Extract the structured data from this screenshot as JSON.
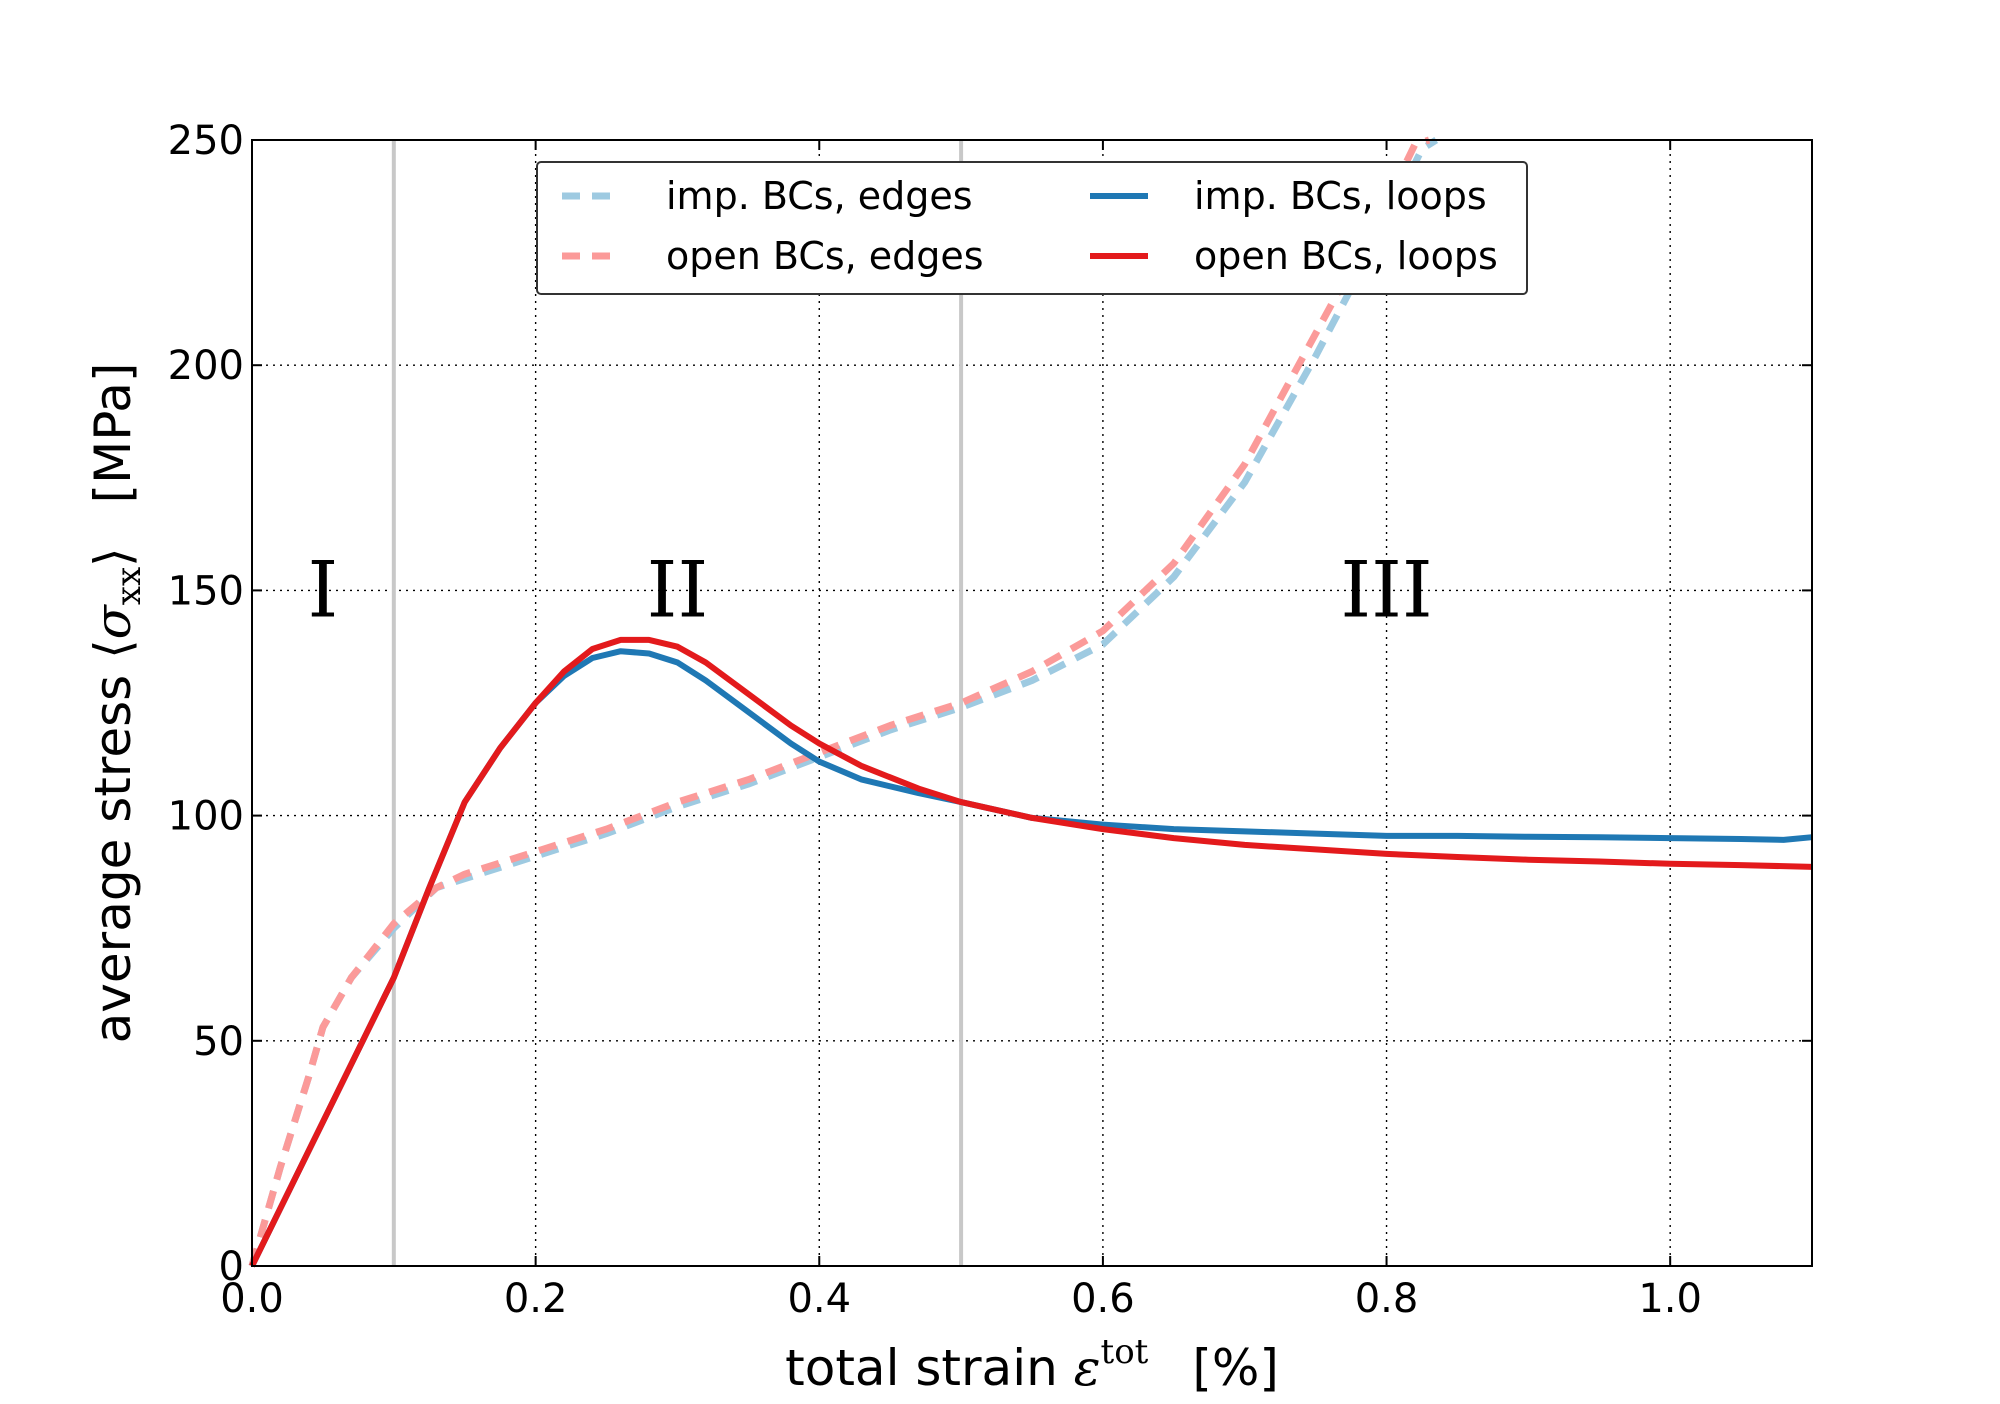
{
  "chart_data": {
    "type": "line",
    "xlabel": "total strain ε^tot   [%]",
    "xlabel_text": "total strain ",
    "xlabel_symbol": "ε",
    "xlabel_sup": "tot",
    "xlabel_unit": "[%]",
    "ylabel": "average stress ⟨σxx⟩   [MPa]",
    "ylabel_text": "average stress ",
    "ylabel_open": "⟨",
    "ylabel_symbol": "σ",
    "ylabel_sub": "xx",
    "ylabel_close": "⟩",
    "ylabel_unit": "[MPa]",
    "xlim": [
      0.0,
      1.1
    ],
    "ylim": [
      0,
      250
    ],
    "xticks": [
      0.0,
      0.2,
      0.4,
      0.6,
      0.8,
      1.0
    ],
    "xtick_labels": [
      "0.0",
      "0.2",
      "0.4",
      "0.6",
      "0.8",
      "1.0"
    ],
    "yticks": [
      0,
      50,
      100,
      150,
      200,
      250
    ],
    "ytick_labels": [
      "0",
      "50",
      "100",
      "150",
      "200",
      "250"
    ],
    "grid": true,
    "legend_position": "top-center",
    "vertical_lines": [
      0.1,
      0.5
    ],
    "regions": [
      {
        "label": "I",
        "x": 0.05,
        "y": 150
      },
      {
        "label": "II",
        "x": 0.3,
        "y": 150
      },
      {
        "label": "III",
        "x": 0.8,
        "y": 150
      }
    ],
    "series": [
      {
        "name": "imp. BCs, edges",
        "color": "#9ecae1",
        "style": "dashed",
        "x": [
          0.0,
          0.02,
          0.04,
          0.05,
          0.07,
          0.1,
          0.13,
          0.15,
          0.2,
          0.25,
          0.3,
          0.35,
          0.4,
          0.45,
          0.5,
          0.55,
          0.6,
          0.65,
          0.7,
          0.75,
          0.8,
          0.825,
          0.835
        ],
        "y": [
          0,
          22,
          42,
          53,
          64,
          75,
          84,
          86,
          91,
          96,
          102,
          107,
          113,
          119,
          124,
          130,
          138,
          153,
          174,
          202,
          232,
          248,
          253
        ]
      },
      {
        "name": "open BCs, edges",
        "color": "#fb9a99",
        "style": "dashed",
        "x": [
          0.0,
          0.02,
          0.04,
          0.05,
          0.07,
          0.1,
          0.13,
          0.15,
          0.2,
          0.25,
          0.3,
          0.35,
          0.4,
          0.45,
          0.5,
          0.55,
          0.6,
          0.65,
          0.7,
          0.75,
          0.8,
          0.82,
          0.83
        ],
        "y": [
          0,
          22,
          42,
          53,
          64,
          76,
          84,
          87,
          92,
          97,
          103,
          108,
          114,
          120,
          125,
          132,
          141,
          156,
          178,
          207,
          236,
          249,
          253
        ]
      },
      {
        "name": "imp. BCs, loops",
        "color": "#1f78b4",
        "style": "solid",
        "x": [
          0.0,
          0.05,
          0.1,
          0.125,
          0.15,
          0.175,
          0.2,
          0.22,
          0.24,
          0.26,
          0.28,
          0.3,
          0.32,
          0.35,
          0.38,
          0.4,
          0.43,
          0.47,
          0.5,
          0.55,
          0.6,
          0.65,
          0.7,
          0.75,
          0.8,
          0.85,
          0.9,
          0.95,
          1.0,
          1.05,
          1.08,
          1.1
        ],
        "y": [
          0,
          32,
          64,
          84,
          103,
          115,
          125,
          131,
          135,
          136.5,
          136,
          134,
          130,
          123,
          116,
          112,
          108,
          105,
          103,
          99.5,
          98,
          97,
          96.5,
          96,
          95.5,
          95.5,
          95.3,
          95.2,
          95,
          94.8,
          94.6,
          95.2
        ]
      },
      {
        "name": "open BCs, loops",
        "color": "#e31a1c",
        "style": "solid",
        "x": [
          0.0,
          0.05,
          0.1,
          0.125,
          0.15,
          0.175,
          0.2,
          0.22,
          0.24,
          0.26,
          0.28,
          0.3,
          0.32,
          0.35,
          0.38,
          0.4,
          0.43,
          0.47,
          0.5,
          0.55,
          0.6,
          0.65,
          0.7,
          0.75,
          0.8,
          0.85,
          0.9,
          0.95,
          1.0,
          1.05,
          1.1
        ],
        "y": [
          0,
          32,
          64,
          84,
          103,
          115,
          125,
          132,
          137,
          139,
          139,
          137.5,
          134,
          127,
          120,
          116,
          111,
          106,
          103,
          99.5,
          97,
          95,
          93.5,
          92.5,
          91.5,
          90.8,
          90.2,
          89.8,
          89.3,
          89,
          88.6
        ]
      }
    ]
  }
}
